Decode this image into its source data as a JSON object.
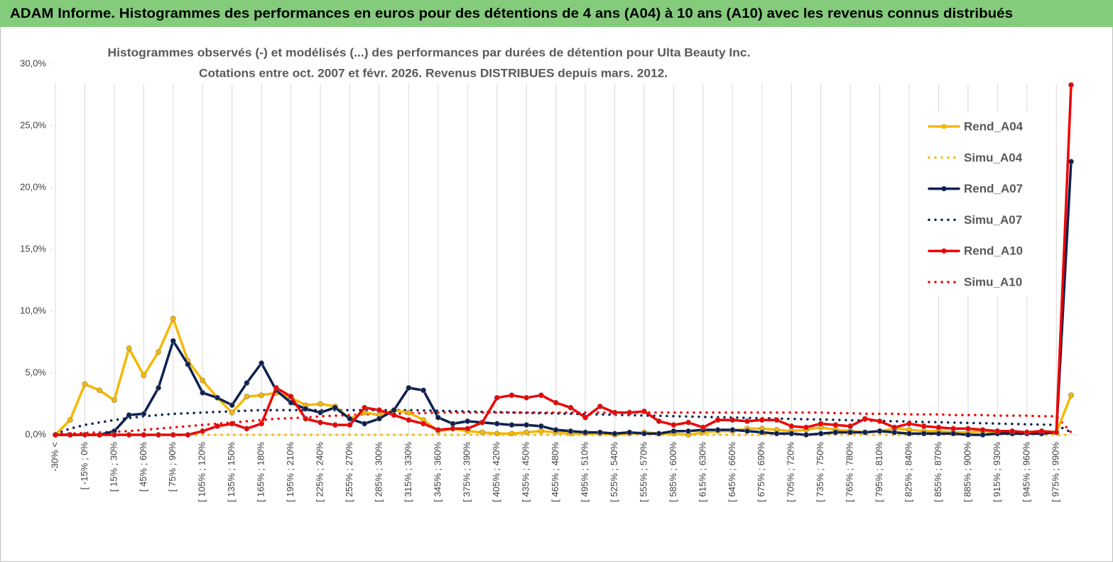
{
  "header": {
    "title": "ADAM Informe. Histogrammes des performances en euros pour des détentions de 4 ans (A04) à 10 ans (A10) avec les revenus connus distribués"
  },
  "chart_data": {
    "type": "line",
    "title": "Histogrammes observés (-) et modélisés (...) des performances par durées de détention pour Ulta Beauty Inc.",
    "subtitle": "Cotations entre oct. 2007 et févr. 2026. Revenus DISTRIBUES depuis mars. 2012.",
    "categories": [
      "-30% <",
      null,
      "[ -15% ; 0%",
      null,
      "[ 15% ; 30%",
      null,
      "[ 45% ; 60%",
      null,
      "[ 75% ; 90%",
      null,
      "[ 105% ; 120%",
      null,
      "[ 135% ; 150%",
      null,
      "[ 165% ; 180%",
      null,
      "[ 195% ; 210%",
      null,
      "[ 225% ; 240%",
      null,
      "[ 255% ; 270%",
      null,
      "[ 285% ; 300%",
      null,
      "[ 315% ; 330%",
      null,
      "[ 345% ; 360%",
      null,
      "[ 375% ; 390%",
      null,
      "[ 405% ; 420%",
      null,
      "[ 435% ; 450%",
      null,
      "[ 465% ; 480%",
      null,
      "[ 495% ; 510%",
      null,
      "[ 525% ; 540%",
      null,
      "[ 555% ; 570%",
      null,
      "[ 585% ; 600%",
      null,
      "[ 615% ; 630%",
      null,
      "[ 645% ; 660%",
      null,
      "[ 675% ; 690%",
      null,
      "[ 705% ; 720%",
      null,
      "[ 735% ; 750%",
      null,
      "[ 765% ; 780%",
      null,
      "[ 795% ; 810%",
      null,
      "[ 825% ; 840%",
      null,
      "[ 855% ; 870%",
      null,
      "[ 885% ; 900%",
      null,
      "[ 915% ; 930%",
      null,
      "[ 945% ; 960%",
      null,
      "[ 975% ; 990%",
      null
    ],
    "series": [
      {
        "name": "Rend_A04",
        "color": "#f5b800",
        "style": "solid",
        "marker": true,
        "values": [
          0,
          1.2,
          4.1,
          3.6,
          2.8,
          7.0,
          4.8,
          6.7,
          9.4,
          6.0,
          4.4,
          3.0,
          1.8,
          3.1,
          3.2,
          3.4,
          3.0,
          2.4,
          2.5,
          2.3,
          1.3,
          1.8,
          1.6,
          2.0,
          1.8,
          1.2,
          0.3,
          0.5,
          0.3,
          0.2,
          0.1,
          0.1,
          0.2,
          0.3,
          0.2,
          0.1,
          0.1,
          0.1,
          0.0,
          0.1,
          0.2,
          0.1,
          0.1,
          0.0,
          0.2,
          0.3,
          0.3,
          0.5,
          0.5,
          0.4,
          0.3,
          0.4,
          0.6,
          0.4,
          0.3,
          0.2,
          0.3,
          0.5,
          0.4,
          0.3,
          0.3,
          0.2,
          0.2,
          0.3,
          0.2,
          0.2,
          0.2,
          0.3,
          0.2,
          3.2
        ]
      },
      {
        "name": "Simu_A04",
        "color": "#f5b800",
        "style": "dotted",
        "marker": false,
        "values": [
          0,
          0,
          0,
          0,
          0,
          0,
          0,
          0,
          0,
          0,
          0,
          0,
          0,
          0,
          0,
          0,
          0,
          0,
          0,
          0,
          0,
          0,
          0,
          0,
          0,
          0,
          0,
          0,
          0,
          0,
          0,
          0,
          0,
          0,
          0,
          0,
          0,
          0,
          0,
          0,
          0,
          0,
          0,
          0,
          0,
          0,
          0,
          0,
          0,
          0,
          0,
          0,
          0,
          0,
          0,
          0,
          0,
          0,
          0,
          0,
          0,
          0,
          0,
          0,
          0,
          0,
          0,
          0,
          0,
          0
        ]
      },
      {
        "name": "Rend_A07",
        "color": "#0d2150",
        "style": "solid",
        "marker": true,
        "values": [
          0,
          0,
          0,
          0,
          0.3,
          1.6,
          1.7,
          3.8,
          7.6,
          5.7,
          3.4,
          3.0,
          2.4,
          4.2,
          5.8,
          3.6,
          2.6,
          2.1,
          1.8,
          2.2,
          1.3,
          0.9,
          1.3,
          2.0,
          3.8,
          3.6,
          1.4,
          0.9,
          1.1,
          1.0,
          0.9,
          0.8,
          0.8,
          0.7,
          0.4,
          0.3,
          0.2,
          0.2,
          0.1,
          0.2,
          0.1,
          0.1,
          0.3,
          0.3,
          0.4,
          0.4,
          0.4,
          0.3,
          0.2,
          0.1,
          0.1,
          0.0,
          0.1,
          0.2,
          0.2,
          0.2,
          0.3,
          0.2,
          0.1,
          0.1,
          0.1,
          0.1,
          0.0,
          0.0,
          0.1,
          0.1,
          0.1,
          0.1,
          0.2,
          22.1
        ]
      },
      {
        "name": "Simu_A07",
        "color": "#0d2150",
        "style": "dotted",
        "marker": false,
        "values": [
          0.1,
          0.5,
          0.8,
          1.0,
          1.2,
          1.35,
          1.5,
          1.6,
          1.7,
          1.75,
          1.8,
          1.85,
          1.9,
          1.95,
          2.0,
          2.0,
          2.0,
          2.0,
          2.0,
          2.0,
          2.0,
          2.0,
          2.0,
          2.0,
          2.0,
          1.97,
          1.95,
          1.92,
          1.89,
          1.86,
          1.84,
          1.81,
          1.78,
          1.75,
          1.73,
          1.7,
          1.67,
          1.65,
          1.62,
          1.59,
          1.56,
          1.54,
          1.51,
          1.48,
          1.45,
          1.43,
          1.4,
          1.37,
          1.35,
          1.32,
          1.29,
          1.26,
          1.24,
          1.21,
          1.18,
          1.15,
          1.13,
          1.1,
          1.07,
          1.04,
          1.02,
          0.99,
          0.96,
          0.94,
          0.91,
          0.88,
          0.85,
          0.83,
          0.8,
          0.2
        ]
      },
      {
        "name": "Rend_A10",
        "color": "#f00000",
        "style": "solid",
        "marker": true,
        "values": [
          0,
          0,
          0,
          0,
          0,
          0,
          0,
          0,
          0,
          0,
          0.3,
          0.7,
          0.9,
          0.5,
          0.9,
          3.8,
          3.1,
          1.3,
          1.0,
          0.8,
          0.8,
          2.2,
          2.0,
          1.6,
          1.2,
          0.9,
          0.4,
          0.5,
          0.5,
          1.0,
          3.0,
          3.2,
          3.0,
          3.2,
          2.6,
          2.2,
          1.4,
          2.3,
          1.8,
          1.8,
          1.9,
          1.1,
          0.8,
          1.0,
          0.6,
          1.2,
          1.2,
          1.1,
          1.2,
          1.2,
          0.7,
          0.6,
          0.9,
          0.8,
          0.7,
          1.3,
          1.1,
          0.6,
          0.9,
          0.7,
          0.6,
          0.5,
          0.5,
          0.4,
          0.3,
          0.3,
          0.2,
          0.3,
          0.2,
          28.3
        ]
      },
      {
        "name": "Simu_A10",
        "color": "#f00000",
        "style": "dotted",
        "marker": false,
        "values": [
          0.1,
          0.1,
          0.15,
          0.2,
          0.25,
          0.3,
          0.4,
          0.5,
          0.6,
          0.7,
          0.8,
          0.9,
          1.0,
          1.1,
          1.2,
          1.3,
          1.35,
          1.4,
          1.5,
          1.55,
          1.6,
          1.65,
          1.7,
          1.7,
          1.75,
          1.75,
          1.8,
          1.8,
          1.8,
          1.8,
          1.8,
          1.8,
          1.8,
          1.8,
          1.8,
          1.8,
          1.8,
          1.8,
          1.8,
          1.8,
          1.8,
          1.8,
          1.8,
          1.8,
          1.8,
          1.8,
          1.8,
          1.8,
          1.8,
          1.8,
          1.8,
          1.8,
          1.8,
          1.75,
          1.75,
          1.7,
          1.7,
          1.7,
          1.65,
          1.65,
          1.65,
          1.6,
          1.6,
          1.6,
          1.55,
          1.55,
          1.55,
          1.5,
          1.5,
          0.2
        ]
      }
    ],
    "ylim": [
      0,
      30
    ],
    "yticks": [
      {
        "value": 0,
        "label": "0,0%"
      },
      {
        "value": 5,
        "label": "5,0%"
      },
      {
        "value": 10,
        "label": "10,0%"
      },
      {
        "value": 15,
        "label": "15,0%"
      },
      {
        "value": 20,
        "label": "20,0%"
      },
      {
        "value": 25,
        "label": "25,0%"
      },
      {
        "value": 30,
        "label": "30,0%"
      }
    ],
    "grid": true,
    "legend": "right"
  }
}
